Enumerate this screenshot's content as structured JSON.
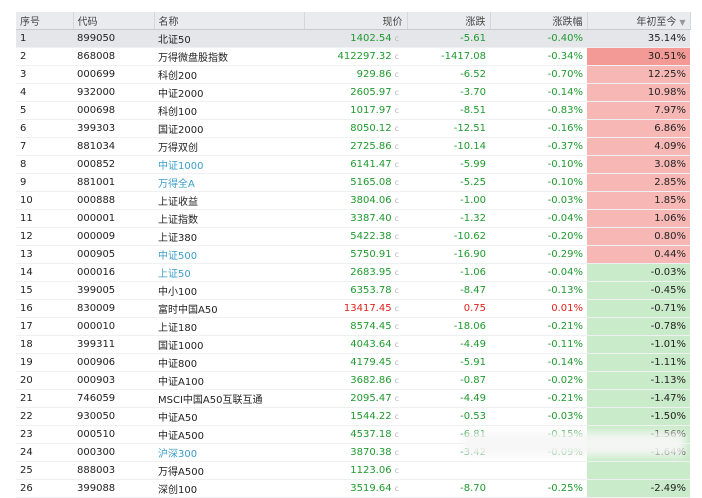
{
  "headers": {
    "seq": "序号",
    "code": "代码",
    "name": "名称",
    "price": "现价",
    "change": "涨跌",
    "pct": "涨跌幅",
    "ytd": "年初至今"
  },
  "price_suffix": "c",
  "rows": [
    {
      "seq": "1",
      "code": "899050",
      "name": "北证50",
      "price": "1402.54",
      "change": "-5.61",
      "pct": "-0.40%",
      "ytd": "35.14%",
      "dir": "down",
      "ytd_dir": "up",
      "link": false,
      "selected": true
    },
    {
      "seq": "2",
      "code": "868008",
      "name": "万得微盘股指数",
      "price": "412297.32",
      "change": "-1417.08",
      "pct": "-0.34%",
      "ytd": "30.51%",
      "dir": "down",
      "ytd_dir": "up",
      "link": false,
      "selected": false
    },
    {
      "seq": "3",
      "code": "000699",
      "name": "科创200",
      "price": "929.86",
      "change": "-6.52",
      "pct": "-0.70%",
      "ytd": "12.25%",
      "dir": "down",
      "ytd_dir": "up",
      "link": false,
      "selected": false
    },
    {
      "seq": "4",
      "code": "932000",
      "name": "中证2000",
      "price": "2605.97",
      "change": "-3.70",
      "pct": "-0.14%",
      "ytd": "10.98%",
      "dir": "down",
      "ytd_dir": "up",
      "link": false,
      "selected": false
    },
    {
      "seq": "5",
      "code": "000698",
      "name": "科创100",
      "price": "1017.97",
      "change": "-8.51",
      "pct": "-0.83%",
      "ytd": "7.97%",
      "dir": "down",
      "ytd_dir": "up",
      "link": false,
      "selected": false
    },
    {
      "seq": "6",
      "code": "399303",
      "name": "国证2000",
      "price": "8050.12",
      "change": "-12.51",
      "pct": "-0.16%",
      "ytd": "6.86%",
      "dir": "down",
      "ytd_dir": "up",
      "link": false,
      "selected": false
    },
    {
      "seq": "7",
      "code": "881034",
      "name": "万得双创",
      "price": "2725.86",
      "change": "-10.14",
      "pct": "-0.37%",
      "ytd": "4.09%",
      "dir": "down",
      "ytd_dir": "up",
      "link": false,
      "selected": false
    },
    {
      "seq": "8",
      "code": "000852",
      "name": "中证1000",
      "price": "6141.47",
      "change": "-5.99",
      "pct": "-0.10%",
      "ytd": "3.08%",
      "dir": "down",
      "ytd_dir": "up",
      "link": true,
      "selected": false
    },
    {
      "seq": "9",
      "code": "881001",
      "name": "万得全A",
      "price": "5165.08",
      "change": "-5.25",
      "pct": "-0.10%",
      "ytd": "2.85%",
      "dir": "down",
      "ytd_dir": "up",
      "link": true,
      "selected": false
    },
    {
      "seq": "10",
      "code": "000888",
      "name": "上证收益",
      "price": "3804.06",
      "change": "-1.00",
      "pct": "-0.03%",
      "ytd": "1.85%",
      "dir": "down",
      "ytd_dir": "up",
      "link": false,
      "selected": false
    },
    {
      "seq": "11",
      "code": "000001",
      "name": "上证指数",
      "price": "3387.40",
      "change": "-1.32",
      "pct": "-0.04%",
      "ytd": "1.06%",
      "dir": "down",
      "ytd_dir": "up",
      "link": false,
      "selected": false
    },
    {
      "seq": "12",
      "code": "000009",
      "name": "上证380",
      "price": "5422.38",
      "change": "-10.62",
      "pct": "-0.20%",
      "ytd": "0.80%",
      "dir": "down",
      "ytd_dir": "up",
      "link": false,
      "selected": false
    },
    {
      "seq": "13",
      "code": "000905",
      "name": "中证500",
      "price": "5750.91",
      "change": "-16.90",
      "pct": "-0.29%",
      "ytd": "0.44%",
      "dir": "down",
      "ytd_dir": "up",
      "link": true,
      "selected": false
    },
    {
      "seq": "14",
      "code": "000016",
      "name": "上证50",
      "price": "2683.95",
      "change": "-1.06",
      "pct": "-0.04%",
      "ytd": "-0.03%",
      "dir": "down",
      "ytd_dir": "down",
      "link": true,
      "selected": false
    },
    {
      "seq": "15",
      "code": "399005",
      "name": "中小100",
      "price": "6353.78",
      "change": "-8.47",
      "pct": "-0.13%",
      "ytd": "-0.45%",
      "dir": "down",
      "ytd_dir": "down",
      "link": false,
      "selected": false
    },
    {
      "seq": "16",
      "code": "830009",
      "name": "富时中国A50",
      "price": "13417.45",
      "change": "0.75",
      "pct": "0.01%",
      "ytd": "-0.71%",
      "dir": "up",
      "ytd_dir": "down",
      "link": false,
      "selected": false
    },
    {
      "seq": "17",
      "code": "000010",
      "name": "上证180",
      "price": "8574.45",
      "change": "-18.06",
      "pct": "-0.21%",
      "ytd": "-0.78%",
      "dir": "down",
      "ytd_dir": "down",
      "link": false,
      "selected": false
    },
    {
      "seq": "18",
      "code": "399311",
      "name": "国证1000",
      "price": "4043.64",
      "change": "-4.49",
      "pct": "-0.11%",
      "ytd": "-1.01%",
      "dir": "down",
      "ytd_dir": "down",
      "link": false,
      "selected": false
    },
    {
      "seq": "19",
      "code": "000906",
      "name": "中证800",
      "price": "4179.45",
      "change": "-5.91",
      "pct": "-0.14%",
      "ytd": "-1.11%",
      "dir": "down",
      "ytd_dir": "down",
      "link": false,
      "selected": false
    },
    {
      "seq": "20",
      "code": "000903",
      "name": "中证A100",
      "price": "3682.86",
      "change": "-0.87",
      "pct": "-0.02%",
      "ytd": "-1.13%",
      "dir": "down",
      "ytd_dir": "down",
      "link": false,
      "selected": false
    },
    {
      "seq": "21",
      "code": "746059",
      "name": "MSCI中国A50互联互通",
      "price": "2095.47",
      "change": "-4.49",
      "pct": "-0.21%",
      "ytd": "-1.47%",
      "dir": "down",
      "ytd_dir": "down",
      "link": false,
      "selected": false
    },
    {
      "seq": "22",
      "code": "930050",
      "name": "中证A50",
      "price": "1544.22",
      "change": "-0.53",
      "pct": "-0.03%",
      "ytd": "-1.50%",
      "dir": "down",
      "ytd_dir": "down",
      "link": false,
      "selected": false
    },
    {
      "seq": "23",
      "code": "000510",
      "name": "中证A500",
      "price": "4537.18",
      "change": "-6.81",
      "pct": "-0.15%",
      "ytd": "-1.56%",
      "dir": "down",
      "ytd_dir": "down",
      "link": false,
      "selected": false
    },
    {
      "seq": "24",
      "code": "000300",
      "name": "沪深300",
      "price": "3870.38",
      "change": "-3.42",
      "pct": "-0.09%",
      "ytd": "-1.64%",
      "dir": "down",
      "ytd_dir": "down",
      "link": true,
      "selected": false
    },
    {
      "seq": "25",
      "code": "888003",
      "name": "万得A500",
      "price": "1123.06",
      "change": "",
      "pct": "",
      "ytd": "",
      "dir": "down",
      "ytd_dir": "down",
      "link": false,
      "selected": false
    },
    {
      "seq": "26",
      "code": "399088",
      "name": "深创100",
      "price": "3519.64",
      "change": "-8.70",
      "pct": "-0.25%",
      "ytd": "-2.49%",
      "dir": "down",
      "ytd_dir": "down",
      "link": false,
      "selected": false
    }
  ]
}
